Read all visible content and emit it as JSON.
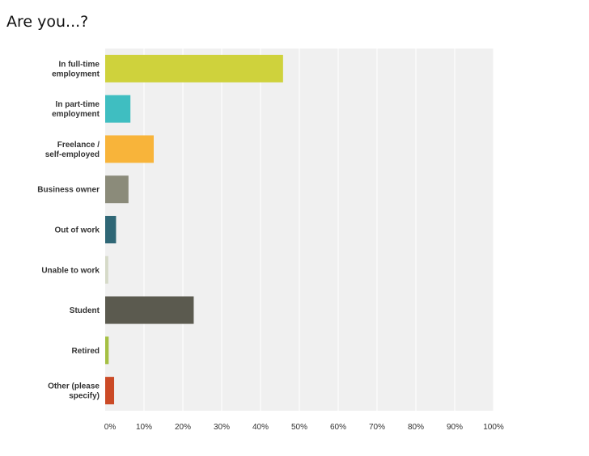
{
  "chart_data": {
    "type": "bar",
    "orientation": "horizontal",
    "title": "Are you...?",
    "categories": [
      [
        "In full-time",
        "employment"
      ],
      [
        "In part-time",
        "employment"
      ],
      [
        "Freelance /",
        "self-employed"
      ],
      [
        "Business owner"
      ],
      [
        "Out of work"
      ],
      [
        "Unable to work"
      ],
      [
        "Student"
      ],
      [
        "Retired"
      ],
      [
        "Other (please",
        "specify)"
      ]
    ],
    "values": [
      45.8,
      6.5,
      12.5,
      6.0,
      2.8,
      0.8,
      22.8,
      0.9,
      2.3
    ],
    "colors": [
      "#cfd23c",
      "#3fbec1",
      "#f8b43a",
      "#8b8b7a",
      "#2f6776",
      "#d6dac8",
      "#5b5a4f",
      "#a5c043",
      "#cb4a26"
    ],
    "xlim": [
      0,
      100
    ],
    "xticks": [
      0,
      10,
      20,
      30,
      40,
      50,
      60,
      70,
      80,
      90,
      100
    ],
    "xtick_labels": [
      "0%",
      "10%",
      "20%",
      "30%",
      "40%",
      "50%",
      "60%",
      "70%",
      "80%",
      "90%",
      "100%"
    ],
    "grid": true,
    "plot_background": "#f0f0f0",
    "gridline_color": "#ffffff"
  }
}
